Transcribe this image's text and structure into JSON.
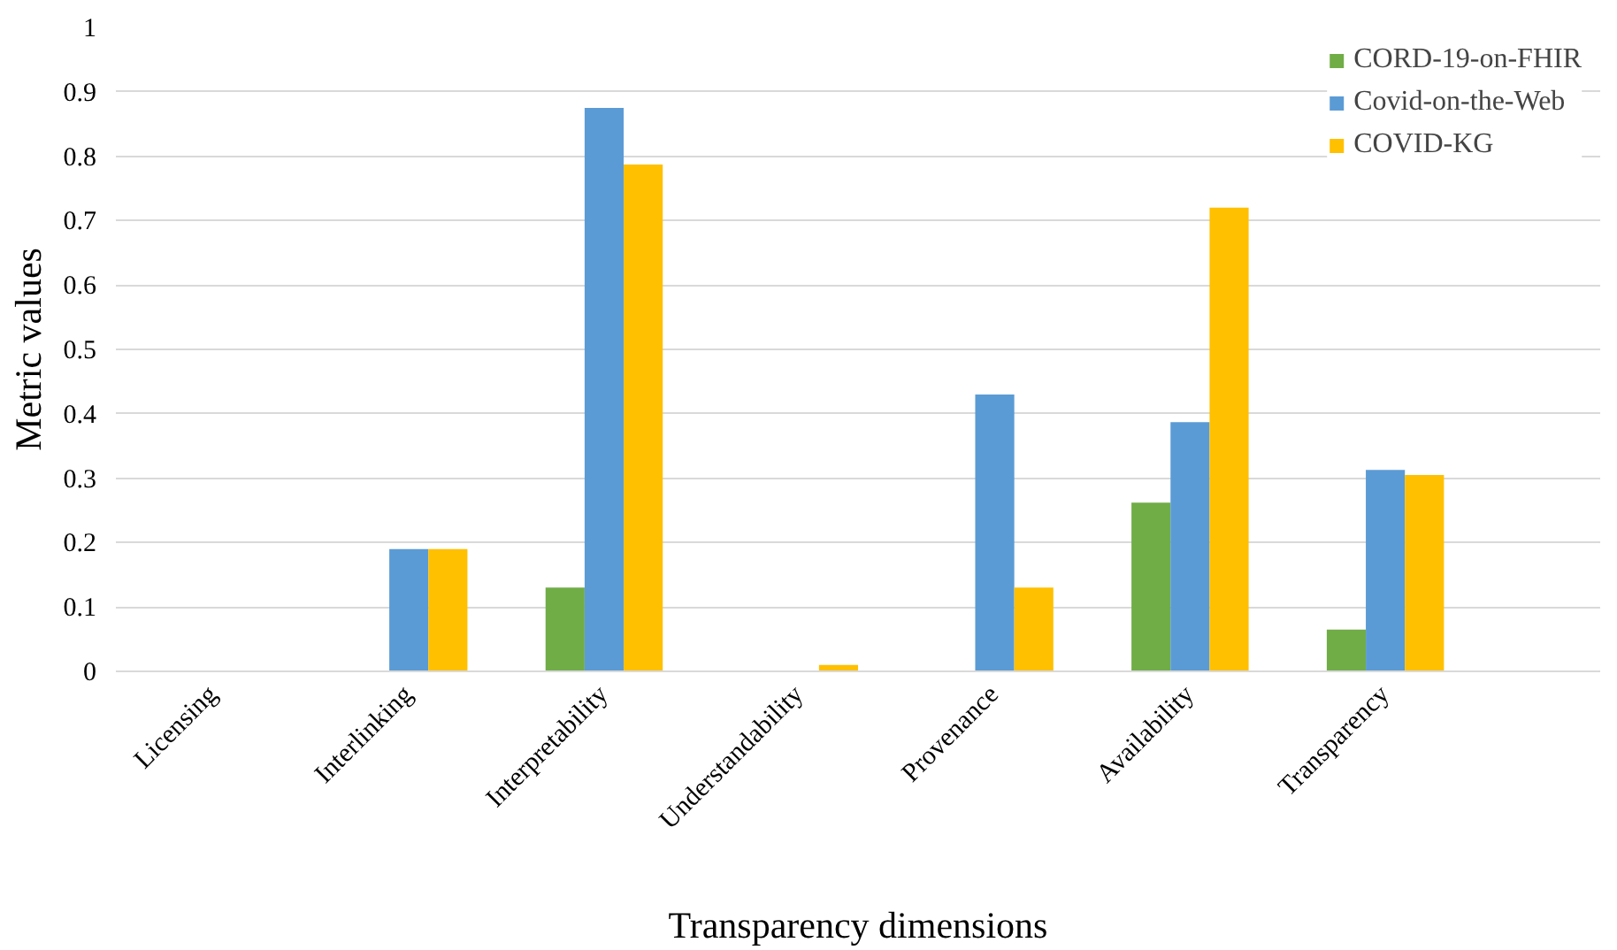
{
  "chart_data": {
    "type": "bar",
    "xlabel": "Transparency dimensions",
    "ylabel": "Metric values",
    "categories": [
      "Licensing",
      "Interlinking",
      "Interpretability",
      "Understandability",
      "Provenance",
      "Availability",
      "Transparency"
    ],
    "series": [
      {
        "name": "CORD-19-on-FHIR",
        "color": "#70ad47",
        "values": [
          0,
          0,
          0.13,
          0,
          0,
          0.262,
          0.065
        ]
      },
      {
        "name": "Covid-on-the-Web",
        "color": "#5b9bd5",
        "values": [
          0,
          0.19,
          0.875,
          0,
          0.43,
          0.387,
          0.313
        ]
      },
      {
        "name": "COVID-KG",
        "color": "#ffc000",
        "values": [
          0,
          0.19,
          0.787,
          0.01,
          0.13,
          0.72,
          0.305
        ]
      }
    ],
    "ylim": [
      0,
      1
    ],
    "yticks": [
      0,
      0.1,
      0.2,
      0.3,
      0.4,
      0.5,
      0.6,
      0.7,
      0.8,
      0.9,
      1
    ],
    "grid": "y",
    "legend": "top right"
  }
}
